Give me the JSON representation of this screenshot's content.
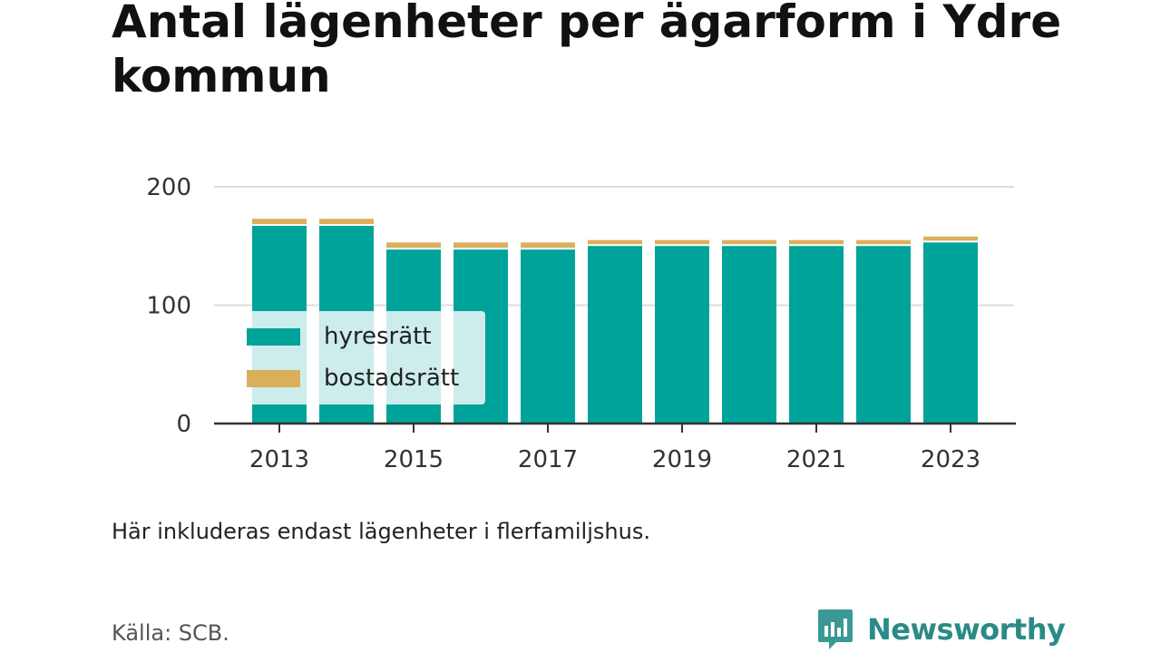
{
  "title": "Antal lägenheter per ägarform i Ydre kommun",
  "note": "Här inkluderas endast lägenheter i flerfamiljshus.",
  "source": "Källa: SCB.",
  "brand": {
    "name": "Newsworthy",
    "icon": "newsworthy-logo-icon"
  },
  "colors": {
    "hyresratt": "#00a39a",
    "bostadsratt": "#dbaf5a",
    "grid": "#dddddd",
    "axis": "#333333"
  },
  "chart_data": {
    "type": "bar",
    "stacked": true,
    "categories": [
      "2013",
      "2014",
      "2015",
      "2016",
      "2017",
      "2018",
      "2019",
      "2020",
      "2021",
      "2022",
      "2023"
    ],
    "x_tick_labels": [
      "2013",
      "2015",
      "2017",
      "2019",
      "2021",
      "2023"
    ],
    "series": [
      {
        "name": "hyresrätt",
        "values": [
          167,
          167,
          147,
          147,
          147,
          150,
          150,
          150,
          150,
          150,
          153
        ]
      },
      {
        "name": "bostadsrätt",
        "values": [
          6,
          6,
          6,
          6,
          6,
          5,
          5,
          5,
          5,
          5,
          5
        ]
      }
    ],
    "y_ticks": [
      0,
      100,
      200
    ],
    "ylim": [
      0,
      200
    ],
    "grid": true,
    "legend": "left-middle"
  }
}
